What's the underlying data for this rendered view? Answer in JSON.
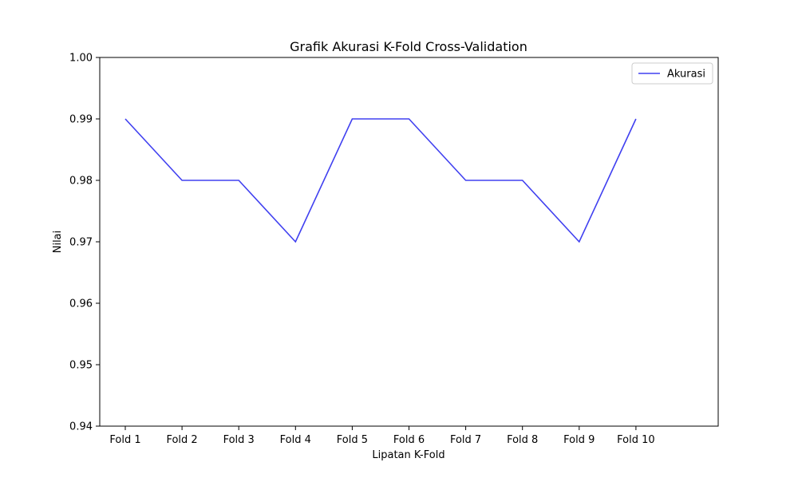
{
  "chart_data": {
    "type": "line",
    "title": "Grafik Akurasi K-Fold Cross-Validation",
    "xlabel": "Lipatan K-Fold",
    "ylabel": "Nilai",
    "categories": [
      "Fold 1",
      "Fold 2",
      "Fold 3",
      "Fold 4",
      "Fold 5",
      "Fold 6",
      "Fold 7",
      "Fold 8",
      "Fold 9",
      "Fold 10"
    ],
    "series": [
      {
        "name": "Akurasi",
        "color": "#4040f0",
        "values": [
          0.99,
          0.98,
          0.98,
          0.97,
          0.99,
          0.99,
          0.98,
          0.98,
          0.97,
          0.99
        ]
      }
    ],
    "ylim": [
      0.94,
      1.0
    ],
    "yticks": [
      "0.94",
      "0.95",
      "0.96",
      "0.97",
      "0.98",
      "0.99",
      "1.00"
    ],
    "grid": false,
    "legend_position": "top-right"
  }
}
